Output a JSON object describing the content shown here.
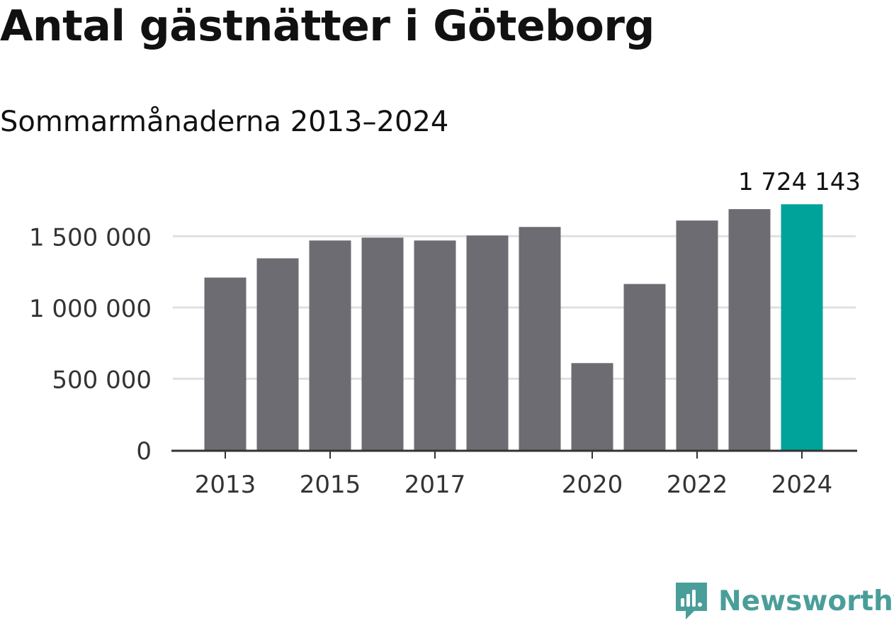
{
  "title": "Antal gästnätter i Göteborg",
  "subtitle": "Sommarmånaderna 2013–2024",
  "brand": {
    "name": "Newsworthy",
    "icon": "newsworthy-logo-icon",
    "color": "#4a9e9a"
  },
  "chart_data": {
    "type": "bar",
    "title": "Antal gästnätter i Göteborg",
    "subtitle": "Sommarmånaderna 2013–2024",
    "xlabel": "",
    "ylabel": "",
    "categories": [
      "2013",
      "2014",
      "2015",
      "2016",
      "2017",
      "2018",
      "2019",
      "2020",
      "2021",
      "2022",
      "2023",
      "2024"
    ],
    "values": [
      1210000,
      1345000,
      1470000,
      1490000,
      1470000,
      1505000,
      1565000,
      610000,
      1165000,
      1610000,
      1690000,
      1724143
    ],
    "ylim": [
      0,
      1750000
    ],
    "yticks": [
      0,
      500000,
      1000000,
      1500000
    ],
    "ytick_labels": [
      "0",
      "500 000",
      "1 000 000",
      "1 500 000"
    ],
    "xtick_labels": [
      "2013",
      "2015",
      "2017",
      "2020",
      "2022",
      "2024"
    ],
    "highlight_index": 11,
    "highlight_label": "1 724 143",
    "grid": true,
    "colors": {
      "bar": "#6d6c72",
      "highlight": "#00a39a",
      "grid": "#e0e0e0",
      "axis": "#333333"
    }
  }
}
